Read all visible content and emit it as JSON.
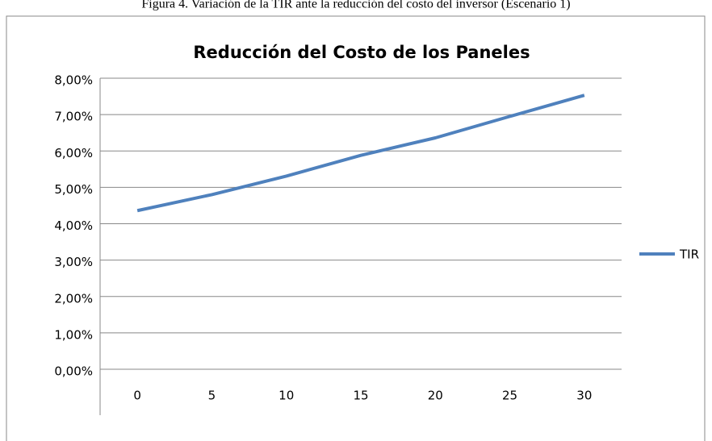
{
  "caption": "Figura 4. Variación de la TIR ante la reducción del costo del inversor (Escenario 1)",
  "chart_data": {
    "type": "line",
    "title": "Reducción del Costo de los Paneles",
    "categories": [
      "0",
      "5",
      "10",
      "15",
      "20",
      "25",
      "30"
    ],
    "series": [
      {
        "name": "TIR",
        "color": "#4f81bd",
        "values": [
          4.36,
          4.8,
          5.31,
          5.88,
          6.36,
          6.95,
          7.53
        ]
      }
    ],
    "ylim": [
      0,
      8
    ],
    "yticks": [
      {
        "value": 0,
        "label": "0,00%"
      },
      {
        "value": 1,
        "label": "1,00%"
      },
      {
        "value": 2,
        "label": "2,00%"
      },
      {
        "value": 3,
        "label": "3,00%"
      },
      {
        "value": 4,
        "label": "4,00%"
      },
      {
        "value": 5,
        "label": "5,00%"
      },
      {
        "value": 6,
        "label": "6,00%"
      },
      {
        "value": 7,
        "label": "7,00%"
      },
      {
        "value": 8,
        "label": "8,00%"
      }
    ],
    "grid": true,
    "legend": "right"
  }
}
